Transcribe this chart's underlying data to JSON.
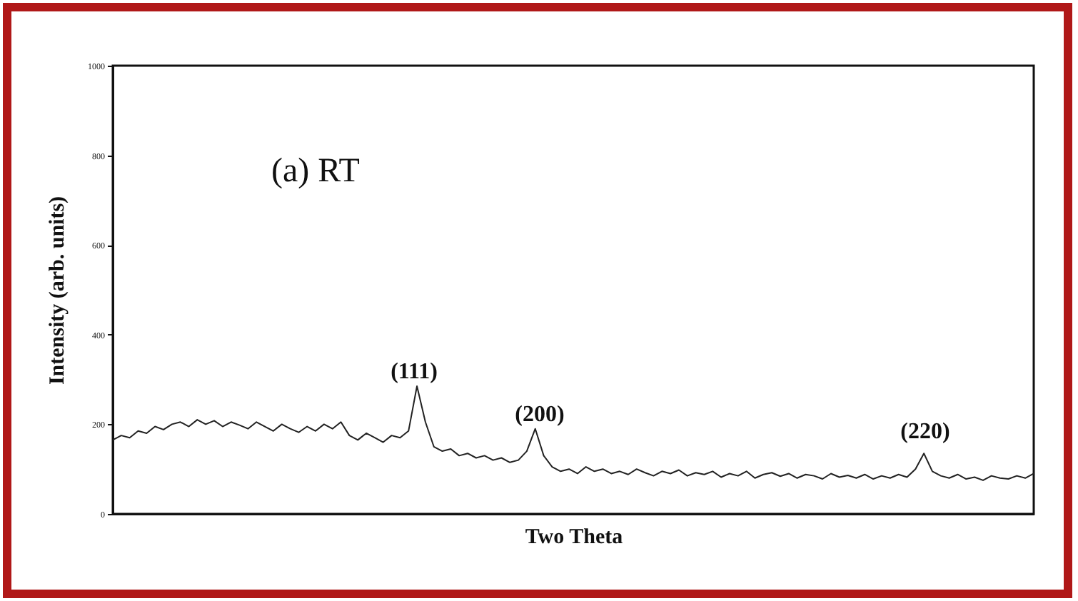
{
  "chart_data": {
    "type": "line",
    "xlabel": "Two Theta",
    "ylabel": "Intensity (arb. units)",
    "color": "#222222",
    "grid": false,
    "categories": [
      null,
      null,
      null,
      null,
      null,
      null,
      null,
      null,
      null,
      null,
      null,
      null,
      null,
      null,
      null,
      null,
      null,
      null,
      null,
      null,
      null,
      null,
      null,
      null,
      null,
      null,
      null,
      null,
      null,
      null,
      null,
      null,
      null,
      null,
      null,
      null,
      null,
      null,
      null,
      null,
      null,
      null,
      null,
      null,
      null,
      null,
      null,
      null,
      null,
      null,
      null,
      null,
      null,
      null,
      null,
      null,
      null,
      null,
      null,
      null,
      null,
      null,
      null,
      null,
      null,
      null,
      null,
      null,
      null,
      null,
      null,
      null,
      null,
      null,
      null,
      null,
      null,
      null,
      null,
      null,
      null,
      null,
      null,
      null,
      null,
      null,
      null,
      null,
      null,
      null,
      null,
      null,
      null,
      null,
      null,
      null,
      null,
      null,
      null,
      null,
      null,
      null,
      null,
      null,
      null,
      null,
      null,
      null,
      null,
      null
    ],
    "values": [
      165,
      175,
      170,
      185,
      180,
      195,
      188,
      200,
      205,
      195,
      210,
      200,
      208,
      195,
      205,
      198,
      190,
      205,
      195,
      185,
      200,
      190,
      182,
      195,
      185,
      200,
      190,
      205,
      175,
      165,
      180,
      170,
      160,
      175,
      170,
      185,
      285,
      205,
      150,
      140,
      145,
      130,
      135,
      125,
      130,
      120,
      125,
      115,
      120,
      140,
      190,
      130,
      105,
      95,
      100,
      90,
      105,
      95,
      100,
      90,
      95,
      88,
      100,
      92,
      85,
      95,
      90,
      98,
      85,
      92,
      88,
      95,
      82,
      90,
      85,
      95,
      80,
      88,
      92,
      84,
      90,
      80,
      88,
      85,
      78,
      90,
      82,
      86,
      80,
      88,
      78,
      85,
      80,
      88,
      82,
      100,
      135,
      95,
      85,
      80,
      88,
      78,
      82,
      75,
      85,
      80,
      78,
      85,
      80,
      90
    ],
    "ylim": [
      0,
      1000
    ],
    "yticks": [
      0,
      200,
      400,
      600,
      800,
      1000
    ],
    "annotations": [
      "(a) RT",
      "(111)",
      "(200)",
      "(220)"
    ]
  }
}
